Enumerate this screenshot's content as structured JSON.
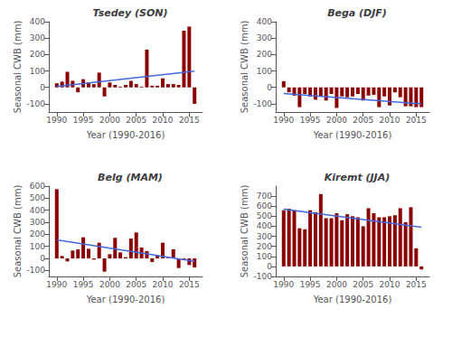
{
  "chart_data": [
    {
      "type": "bar",
      "title": "Tsedey (SON)",
      "xlabel": "Year (1990-2016)",
      "ylabel": "Seasonal CWB (mm)",
      "x": [
        1990,
        1991,
        1992,
        1993,
        1994,
        1995,
        1996,
        1997,
        1998,
        1999,
        2000,
        2001,
        2002,
        2003,
        2004,
        2005,
        2006,
        2007,
        2008,
        2009,
        2010,
        2011,
        2012,
        2013,
        2014,
        2015,
        2016
      ],
      "series": [
        {
          "type": "bar",
          "color": "#8B0000",
          "values": [
            25,
            35,
            95,
            40,
            -30,
            50,
            30,
            20,
            90,
            -55,
            30,
            15,
            5,
            15,
            40,
            20,
            5,
            230,
            10,
            10,
            55,
            20,
            20,
            15,
            345,
            370,
            -100
          ]
        },
        {
          "type": "line",
          "color": "#4169E1",
          "x": [
            1990,
            2016
          ],
          "values": [
            4.973545,
            99.100529
          ]
        }
      ],
      "xlim": [
        1988.5,
        2017.5
      ],
      "xticks": [
        1990,
        1995,
        2000,
        2005,
        2010,
        2015
      ],
      "ylim": [
        -150,
        400
      ],
      "yticks": [
        -100,
        0,
        100,
        200,
        300,
        400
      ],
      "grid": false
    },
    {
      "type": "bar",
      "title": "Bega (DJF)",
      "xlabel": "Year (1990-2016)",
      "ylabel": "Seasonal CWB (mm)",
      "x": [
        1990,
        1991,
        1992,
        1993,
        1994,
        1995,
        1996,
        1997,
        1998,
        1999,
        2000,
        2001,
        2002,
        2003,
        2004,
        2005,
        2006,
        2007,
        2008,
        2009,
        2010,
        2011,
        2012,
        2013,
        2014,
        2015,
        2016
      ],
      "series": [
        {
          "type": "bar",
          "color": "#8B0000",
          "values": [
            38,
            -30,
            -50,
            -120,
            -40,
            -55,
            -75,
            -55,
            -80,
            -40,
            -125,
            -55,
            -60,
            -55,
            -40,
            -80,
            -50,
            -45,
            -120,
            -55,
            -110,
            -30,
            -60,
            -115,
            -115,
            -120,
            -120
          ]
        },
        {
          "type": "line",
          "color": "#4169E1",
          "x": [
            1990,
            2016
          ],
          "values": [
            -36.828042,
            -101.097884
          ]
        }
      ],
      "xlim": [
        1988.5,
        2017.5
      ],
      "xticks": [
        1990,
        1995,
        2000,
        2005,
        2010,
        2015
      ],
      "ylim": [
        -150,
        400
      ],
      "yticks": [
        -100,
        0,
        100,
        200,
        300,
        400
      ],
      "grid": false
    },
    {
      "type": "bar",
      "title": "Belg (MAM)",
      "xlabel": "Year (1990-2016)",
      "ylabel": "Seasonal CWB (mm)",
      "x": [
        1990,
        1991,
        1992,
        1993,
        1994,
        1995,
        1996,
        1997,
        1998,
        1999,
        2000,
        2001,
        2002,
        2003,
        2004,
        2005,
        2006,
        2007,
        2008,
        2009,
        2010,
        2011,
        2012,
        2013,
        2014,
        2015,
        2016
      ],
      "series": [
        {
          "type": "bar",
          "color": "#8B0000",
          "values": [
            575,
            20,
            -25,
            65,
            75,
            175,
            80,
            -10,
            130,
            -110,
            35,
            170,
            50,
            10,
            165,
            215,
            90,
            60,
            -30,
            25,
            130,
            5,
            75,
            -80,
            -10,
            -55,
            -75
          ]
        },
        {
          "type": "line",
          "color": "#4169E1",
          "x": [
            1990,
            2016
          ],
          "values": [
            153.769841,
            -23.769841
          ]
        }
      ],
      "xlim": [
        1988.5,
        2017.5
      ],
      "xticks": [
        1990,
        1995,
        2000,
        2005,
        2010,
        2015
      ],
      "ylim": [
        -150,
        600
      ],
      "yticks": [
        -100,
        0,
        100,
        200,
        300,
        400,
        500,
        600
      ],
      "grid": false
    },
    {
      "type": "bar",
      "title": "Kiremt (JJA)",
      "xlabel": "Year (1990-2016)",
      "ylabel": "Seasonal CWB (mm)",
      "x": [
        1990,
        1991,
        1992,
        1993,
        1994,
        1995,
        1996,
        1997,
        1998,
        1999,
        2000,
        2001,
        2002,
        2003,
        2004,
        2005,
        2006,
        2007,
        2008,
        2009,
        2010,
        2011,
        2012,
        2013,
        2014,
        2015,
        2016
      ],
      "series": [
        {
          "type": "bar",
          "color": "#8B0000",
          "values": [
            560,
            575,
            560,
            380,
            370,
            560,
            540,
            720,
            480,
            480,
            530,
            460,
            520,
            500,
            490,
            400,
            580,
            530,
            490,
            490,
            500,
            510,
            580,
            440,
            590,
            180,
            -30
          ]
        },
        {
          "type": "line",
          "color": "#4169E1",
          "x": [
            1990,
            2016
          ],
          "values": [
            571.402116,
            390.449786
          ]
        }
      ],
      "xlim": [
        1988.5,
        2017.5
      ],
      "xticks": [
        1990,
        1995,
        2000,
        2005,
        2010,
        2015
      ],
      "ylim": [
        -100,
        800
      ],
      "yticks": [
        -100,
        0,
        100,
        200,
        300,
        400,
        500,
        600,
        700
      ],
      "grid": false
    }
  ]
}
